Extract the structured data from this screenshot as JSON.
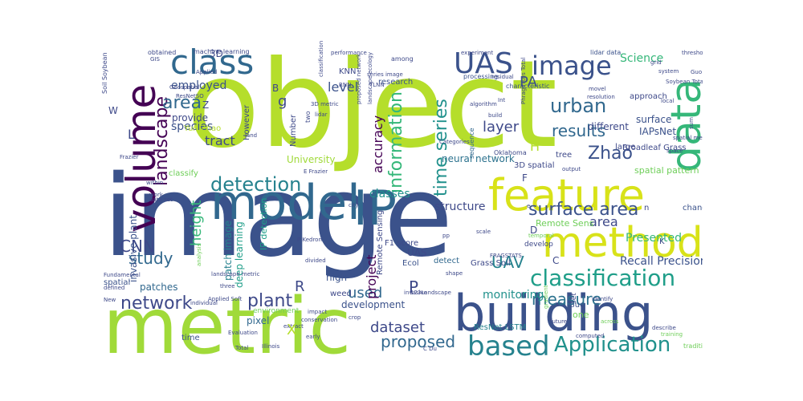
{
  "words": [
    {
      "text": "image",
      "color": "#3b528b"
    },
    {
      "text": "object",
      "color": "#b5de2b"
    },
    {
      "text": "metric",
      "color": "#a0da39"
    },
    {
      "text": "building",
      "color": "#3b528b"
    },
    {
      "text": "model",
      "color": "#31688e"
    },
    {
      "text": "feature",
      "color": "#d8e219"
    },
    {
      "text": "IP",
      "color": "#31688e"
    },
    {
      "text": "method",
      "color": "#d8e219"
    },
    {
      "text": "volume",
      "color": "#440154"
    },
    {
      "text": "data",
      "color": "#35b779"
    },
    {
      "text": "class",
      "color": "#31688e"
    },
    {
      "text": "UAS",
      "color": "#3b528b"
    },
    {
      "text": "image",
      "color": "#3b528b"
    },
    {
      "text": "classification",
      "color": "#1f9e89"
    },
    {
      "text": "based",
      "color": "#26828e"
    },
    {
      "text": "Application",
      "color": "#21918c"
    },
    {
      "text": "landscape",
      "color": "#440154"
    },
    {
      "text": "detection",
      "color": "#26828e"
    },
    {
      "text": "time series",
      "color": "#21918c"
    },
    {
      "text": "network",
      "color": "#3e4989"
    },
    {
      "text": "information",
      "color": "#35b779"
    },
    {
      "text": "urban",
      "color": "#31688e"
    },
    {
      "text": "results",
      "color": "#31688e"
    },
    {
      "text": "area",
      "color": "#31688e"
    },
    {
      "text": "surface area",
      "color": "#3b528b"
    },
    {
      "text": "plant",
      "color": "#3e4989"
    },
    {
      "text": "Zhao",
      "color": "#3b528b"
    },
    {
      "text": "layer",
      "color": "#3e4989"
    },
    {
      "text": "measure",
      "color": "#2c728e"
    },
    {
      "text": "UAV",
      "color": "#26828e"
    },
    {
      "text": "dataset",
      "color": "#3e4989"
    },
    {
      "text": "proposed",
      "color": "#31688e"
    },
    {
      "text": "CNN",
      "color": "#3e4989"
    },
    {
      "text": "study",
      "color": "#31688e"
    },
    {
      "text": "height",
      "color": "#35b779"
    },
    {
      "text": "tract",
      "color": "#3e4989"
    },
    {
      "text": "classes",
      "color": "#21918c"
    },
    {
      "text": "accuracy",
      "color": "#440154"
    },
    {
      "text": "level",
      "color": "#3b528b"
    },
    {
      "text": "Science",
      "color": "#35b779"
    },
    {
      "text": "PA",
      "color": "#3b528b"
    },
    {
      "text": "used",
      "color": "#31688e"
    },
    {
      "text": "project",
      "color": "#440154"
    },
    {
      "text": "monitoring",
      "color": "#21918c"
    },
    {
      "text": "structure",
      "color": "#3e4989"
    },
    {
      "text": "species",
      "color": "#3b528b"
    },
    {
      "text": "employed",
      "color": "#3b528b"
    },
    {
      "text": "area",
      "color": "#3e4989"
    },
    {
      "text": "Presented",
      "color": "#35b779"
    },
    {
      "text": "Recall Precision",
      "color": "#3b528b"
    },
    {
      "text": "neural network",
      "color": "#2c728e"
    },
    {
      "text": "development",
      "color": "#3b528b"
    },
    {
      "text": "invasive plant",
      "color": "#3b528b"
    },
    {
      "text": "patch image",
      "color": "#26828e"
    },
    {
      "text": "deep learning",
      "color": "#1f9e89"
    },
    {
      "text": "spatial pattern",
      "color": "#6ece58"
    },
    {
      "text": "Remote Sens",
      "color": "#6ece58"
    },
    {
      "text": "IAPsNet",
      "color": "#3b528b"
    },
    {
      "text": "surface",
      "color": "#3b528b"
    },
    {
      "text": "Broadleaf Grass",
      "color": "#3e4989"
    },
    {
      "text": "ResNet LSTM",
      "color": "#26828e"
    },
    {
      "text": "machine learning",
      "color": "#3e4989"
    },
    {
      "text": "lidar data",
      "color": "#3b528b"
    },
    {
      "text": "Yun Zhao",
      "color": "#b5de2b"
    },
    {
      "text": "University",
      "color": "#a0da39"
    },
    {
      "text": "research",
      "color": "#3b528b"
    },
    {
      "text": "processing",
      "color": "#3b528b"
    },
    {
      "text": "characteristic",
      "color": "#3b528b"
    },
    {
      "text": "approach",
      "color": "#3e4989"
    },
    {
      "text": "different",
      "color": "#3e4989"
    },
    {
      "text": "large",
      "color": "#3e4989"
    },
    {
      "text": "provide",
      "color": "#3e4989"
    },
    {
      "text": "obtained",
      "color": "#3e4989"
    },
    {
      "text": "patches",
      "color": "#31688e"
    },
    {
      "text": "pixel",
      "color": "#31688e"
    },
    {
      "text": "high",
      "color": "#3b528b"
    },
    {
      "text": "Ecol",
      "color": "#3b528b"
    },
    {
      "text": "detect",
      "color": "#31688e"
    },
    {
      "text": "Remote Sensing",
      "color": "#3e4989"
    },
    {
      "text": "Grass Soil",
      "color": "#3e4989"
    },
    {
      "text": "Soil Soybean",
      "color": "#3e4989"
    },
    {
      "text": "spatial",
      "color": "#3b528b"
    },
    {
      "text": "UAS",
      "color": "#3e4989"
    },
    {
      "text": "KNN",
      "color": "#3e4989"
    },
    {
      "text": "change",
      "color": "#3b528b"
    },
    {
      "text": "Guo",
      "color": "#3b528b"
    },
    {
      "text": "time",
      "color": "#3b528b"
    },
    {
      "text": "environment",
      "color": "#6ece58"
    },
    {
      "text": "weed",
      "color": "#3e4989"
    },
    {
      "text": "3D spatial",
      "color": "#3e4989"
    },
    {
      "text": "tree",
      "color": "#3e4989"
    },
    {
      "text": "IP detection",
      "color": "#1f9e89"
    },
    {
      "text": "F1 score",
      "color": "#3e4989"
    },
    {
      "text": "develop",
      "color": "#3e4989"
    },
    {
      "text": "Number",
      "color": "#3e4989"
    },
    {
      "text": "However",
      "color": "#3e4989"
    },
    {
      "text": "sequence",
      "color": "#31688e"
    },
    {
      "text": "Oklahoma",
      "color": "#3e4989"
    },
    {
      "text": "classify",
      "color": "#6ece58"
    },
    {
      "text": "Geospatial",
      "color": "#3e4989"
    },
    {
      "text": "among",
      "color": "#3e4989"
    },
    {
      "text": "performance",
      "color": "#3e4989"
    },
    {
      "text": "experiment",
      "color": "#3e4989"
    },
    {
      "text": "threshold",
      "color": "#3e4989"
    },
    {
      "text": "grid",
      "color": "#3e4989"
    },
    {
      "text": "system",
      "color": "#3e4989"
    },
    {
      "text": "Soybean Total",
      "color": "#3e4989"
    },
    {
      "text": "Guo C",
      "color": "#3e4989"
    },
    {
      "text": "resolution",
      "color": "#3e4989"
    },
    {
      "text": "movel",
      "color": "#3e4989"
    },
    {
      "text": "local",
      "color": "#3e4989"
    },
    {
      "text": "spatial metrics",
      "color": "#3e4989"
    },
    {
      "text": "space",
      "color": "#3e4989"
    },
    {
      "text": "residual",
      "color": "#3e4989"
    },
    {
      "text": "algorithm",
      "color": "#3e4989"
    },
    {
      "text": "build",
      "color": "#3e4989"
    },
    {
      "text": "Int",
      "color": "#3e4989"
    },
    {
      "text": "lidar",
      "color": "#3e4989"
    },
    {
      "text": "two",
      "color": "#3e4989"
    },
    {
      "text": "3D metric",
      "color": "#3e4989"
    },
    {
      "text": "proposed network",
      "color": "#3e4989"
    },
    {
      "text": "landscape ecology",
      "color": "#3e4989"
    },
    {
      "text": "Categories",
      "color": "#3e4989"
    },
    {
      "text": "E Frazier",
      "color": "#3e4989"
    },
    {
      "text": "land",
      "color": "#3e4989"
    },
    {
      "text": "output",
      "color": "#3e4989"
    },
    {
      "text": "temporal",
      "color": "#6ece58"
    },
    {
      "text": "scale",
      "color": "#3e4989"
    },
    {
      "text": "pp",
      "color": "#3e4989"
    },
    {
      "text": "FRAGSTATS",
      "color": "#3e4989"
    },
    {
      "text": "identify",
      "color": "#3e4989"
    },
    {
      "text": "gradient",
      "color": "#6ece58"
    },
    {
      "text": "future",
      "color": "#3e4989"
    },
    {
      "text": "set",
      "color": "#3e4989"
    },
    {
      "text": "across",
      "color": "#6ece58"
    },
    {
      "text": "describe",
      "color": "#3e4989"
    },
    {
      "text": "training",
      "color": "#6ece58"
    },
    {
      "text": "traditional",
      "color": "#6ece58"
    },
    {
      "text": "computed",
      "color": "#3e4989"
    },
    {
      "text": "one",
      "color": "#6ece58"
    },
    {
      "text": "crop",
      "color": "#3e4989"
    },
    {
      "text": "invasive",
      "color": "#3e4989"
    },
    {
      "text": "shape",
      "color": "#3e4989"
    },
    {
      "text": "impact",
      "color": "#3e4989"
    },
    {
      "text": "conservation",
      "color": "#3e4989"
    },
    {
      "text": "extract",
      "color": "#3e4989"
    },
    {
      "text": "early",
      "color": "#3e4989"
    },
    {
      "text": "Total",
      "color": "#3e4989"
    },
    {
      "text": "Illinois",
      "color": "#3e4989"
    },
    {
      "text": "Evaluation",
      "color": "#3e4989"
    },
    {
      "text": "individual",
      "color": "#3e4989"
    },
    {
      "text": "Fundamental",
      "color": "#3e4989"
    },
    {
      "text": "defined",
      "color": "#3e4989"
    },
    {
      "text": "New",
      "color": "#3e4989"
    },
    {
      "text": "Applied Soft",
      "color": "#3e4989"
    },
    {
      "text": "landscape metric",
      "color": "#3e4989"
    },
    {
      "text": "analysis",
      "color": "#6ece58"
    },
    {
      "text": "data set",
      "color": "#3e4989"
    },
    {
      "text": "work",
      "color": "#3e4989"
    },
    {
      "text": "within",
      "color": "#3e4989"
    },
    {
      "text": "Frazier",
      "color": "#3e4989"
    },
    {
      "text": "three",
      "color": "#3e4989"
    },
    {
      "text": "P Kedron",
      "color": "#3e4989"
    },
    {
      "text": "divided",
      "color": "#3e4989"
    },
    {
      "text": "city",
      "color": "#3e4989"
    },
    {
      "text": "Applied",
      "color": "#3e4989"
    },
    {
      "text": "GIS",
      "color": "#3e4989"
    },
    {
      "text": "ResNetSO",
      "color": "#3e4989"
    },
    {
      "text": "RNN",
      "color": "#3e4989"
    },
    {
      "text": "classification",
      "color": "#3e4989"
    },
    {
      "text": "series image",
      "color": "#3e4989"
    },
    {
      "text": "TLNN",
      "color": "#3e4989"
    },
    {
      "text": "Phragmites Total",
      "color": "#3e4989"
    },
    {
      "text": "sum",
      "color": "#3e4989"
    },
    {
      "text": "123Landscape",
      "color": "#3e4989"
    },
    {
      "text": "C Du",
      "color": "#3e4989"
    },
    {
      "text": "e",
      "color": "#3e4989"
    },
    {
      "text": "n",
      "color": "#3e4989"
    },
    {
      "text": "K",
      "color": "#3e4989"
    },
    {
      "text": "L",
      "color": "#3e4989"
    },
    {
      "text": "H",
      "color": "#b5de2b"
    },
    {
      "text": "P",
      "color": "#3e4989"
    },
    {
      "text": "R",
      "color": "#3e4989"
    },
    {
      "text": "X",
      "color": "#b5de2b"
    },
    {
      "text": "g",
      "color": "#3e4989"
    },
    {
      "text": "B",
      "color": "#3e4989"
    },
    {
      "text": "C",
      "color": "#3e4989"
    },
    {
      "text": "D",
      "color": "#3e4989"
    },
    {
      "text": "F",
      "color": "#3e4989"
    },
    {
      "text": "W",
      "color": "#3e4989"
    },
    {
      "text": "Z",
      "color": "#3e4989"
    },
    {
      "text": "3D",
      "color": "#3e4989"
    }
  ]
}
